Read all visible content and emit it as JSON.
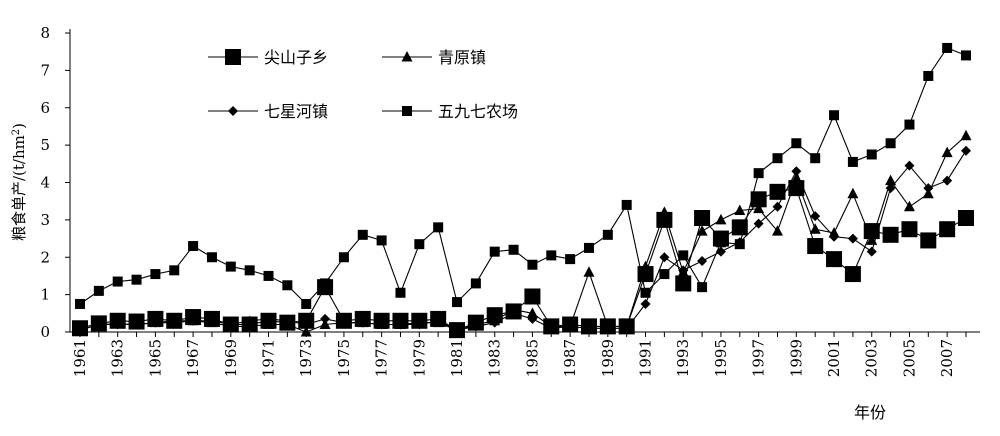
{
  "chart_data": {
    "type": "line",
    "xlabel": "年份",
    "ylabel": "粮食单产/(t/hm²)",
    "ylabel_main": "粮食单产/(t/hm",
    "ylabel_sup": "2",
    "ylabel_end": ")",
    "ylim": [
      0,
      8
    ],
    "xlim": [
      1961,
      2008
    ],
    "grid": false,
    "legend_position": "top-left",
    "yticks": [
      "0",
      "1",
      "2",
      "3",
      "4",
      "5",
      "6",
      "7",
      "8"
    ],
    "xticks": [
      "1961",
      "1963",
      "1965",
      "1967",
      "1969",
      "1971",
      "1973",
      "1975",
      "1977",
      "1979",
      "1981",
      "1983",
      "1985",
      "1987",
      "1989",
      "1991",
      "1993",
      "1995",
      "1997",
      "1999",
      "2001",
      "2003",
      "2005",
      "2007"
    ],
    "x": [
      1961,
      1962,
      1963,
      1964,
      1965,
      1966,
      1967,
      1968,
      1969,
      1970,
      1971,
      1972,
      1973,
      1974,
      1975,
      1976,
      1977,
      1978,
      1979,
      1980,
      1981,
      1982,
      1983,
      1984,
      1985,
      1986,
      1987,
      1988,
      1989,
      1990,
      1991,
      1992,
      1993,
      1994,
      1995,
      1996,
      1997,
      1998,
      1999,
      2000,
      2001,
      2002,
      2003,
      2004,
      2005,
      2006,
      2007,
      2008
    ],
    "series": [
      {
        "name": "尖山子乡",
        "marker": "square-large",
        "values": [
          0.1,
          0.23,
          0.3,
          0.28,
          0.35,
          0.3,
          0.4,
          0.35,
          0.2,
          0.2,
          0.3,
          0.25,
          0.3,
          1.2,
          0.3,
          0.35,
          0.3,
          0.3,
          0.3,
          0.35,
          0.05,
          0.25,
          0.45,
          0.55,
          0.95,
          0.15,
          0.2,
          0.15,
          0.15,
          0.15,
          1.55,
          3.0,
          1.3,
          3.05,
          2.5,
          2.8,
          3.55,
          3.75,
          3.85,
          2.3,
          1.95,
          1.55,
          2.7,
          2.6,
          2.75,
          2.45,
          2.75,
          3.05
        ]
      },
      {
        "name": "青原镇",
        "marker": "triangle",
        "values": [
          0.05,
          0.2,
          0.22,
          0.2,
          0.25,
          0.25,
          0.3,
          0.25,
          0.15,
          0.15,
          0.2,
          0.2,
          0.0,
          0.2,
          0.25,
          0.25,
          0.2,
          0.2,
          0.25,
          0.25,
          0.05,
          0.2,
          0.3,
          0.6,
          0.5,
          0.15,
          0.15,
          1.6,
          0.15,
          0.15,
          1.75,
          3.2,
          1.6,
          2.7,
          3.0,
          3.25,
          3.3,
          2.7,
          4.1,
          2.75,
          2.65,
          3.7,
          2.45,
          4.05,
          3.35,
          3.7,
          4.8,
          5.25
        ]
      },
      {
        "name": "七星河镇",
        "marker": "diamond",
        "values": [
          0.05,
          0.2,
          0.2,
          0.2,
          0.25,
          0.3,
          0.3,
          0.3,
          0.2,
          0.3,
          0.35,
          0.3,
          0.2,
          0.35,
          0.25,
          0.25,
          0.2,
          0.2,
          0.2,
          0.3,
          0.05,
          0.15,
          0.25,
          0.5,
          0.35,
          0.1,
          0.15,
          0.1,
          0.1,
          0.1,
          0.75,
          2.0,
          1.65,
          1.9,
          2.15,
          2.4,
          2.9,
          3.35,
          4.3,
          3.1,
          2.55,
          2.5,
          2.15,
          3.85,
          4.45,
          3.85,
          4.05,
          4.85
        ]
      },
      {
        "name": "五九七农场",
        "marker": "square",
        "values": [
          0.75,
          1.1,
          1.35,
          1.4,
          1.55,
          1.65,
          2.3,
          2.0,
          1.75,
          1.65,
          1.5,
          1.25,
          0.75,
          1.3,
          2.0,
          2.6,
          2.45,
          1.05,
          2.35,
          2.8,
          0.8,
          1.3,
          2.15,
          2.2,
          1.8,
          2.05,
          1.95,
          2.25,
          2.6,
          3.4,
          1.05,
          1.55,
          2.05,
          1.2,
          2.4,
          2.35,
          4.25,
          4.65,
          5.05,
          4.65,
          5.8,
          4.55,
          4.75,
          5.05,
          5.55,
          6.85,
          7.6,
          7.4
        ]
      }
    ]
  }
}
